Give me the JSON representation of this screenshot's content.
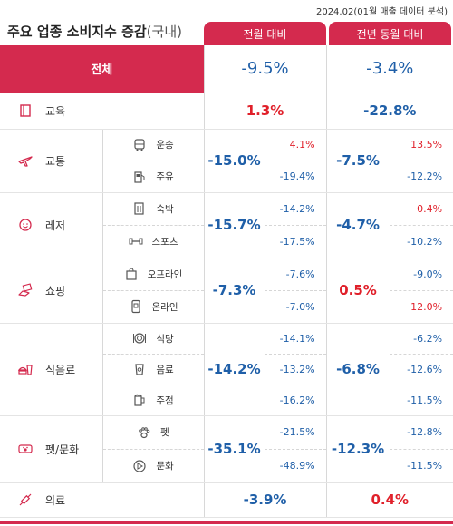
{
  "source_note": "2024.02(01월 매출 데이터 분석)",
  "title_main": "주요 업종 소비지수 증감",
  "title_paren": "(국내)",
  "columns": {
    "month": "전월 대비",
    "year": "전년 동월 대비"
  },
  "total": {
    "label": "전체",
    "month": "-9.5%",
    "year": "-3.4%"
  },
  "education": {
    "label": "교육",
    "month": "1.3%",
    "year": "-22.8%"
  },
  "transport": {
    "label": "교통",
    "month": "-15.0%",
    "year": "-7.5%",
    "subs": [
      {
        "label": "운송",
        "month": "4.1%",
        "year": "13.5%"
      },
      {
        "label": "주유",
        "month": "-19.4%",
        "year": "-12.2%"
      }
    ]
  },
  "leisure": {
    "label": "레저",
    "month": "-15.7%",
    "year": "-4.7%",
    "subs": [
      {
        "label": "숙박",
        "month": "-14.2%",
        "year": "0.4%"
      },
      {
        "label": "스포츠",
        "month": "-17.5%",
        "year": "-10.2%"
      }
    ]
  },
  "shopping": {
    "label": "쇼핑",
    "month": "-7.3%",
    "year": "0.5%",
    "subs": [
      {
        "label": "오프라인",
        "month": "-7.6%",
        "year": "-9.0%"
      },
      {
        "label": "온라인",
        "month": "-7.0%",
        "year": "12.0%"
      }
    ]
  },
  "food": {
    "label": "식음료",
    "month": "-14.2%",
    "year": "-6.8%",
    "subs": [
      {
        "label": "식당",
        "month": "-14.1%",
        "year": "-6.2%"
      },
      {
        "label": "음료",
        "month": "-13.2%",
        "year": "-12.6%"
      },
      {
        "label": "주점",
        "month": "-16.2%",
        "year": "-11.5%"
      }
    ]
  },
  "pet_culture": {
    "label": "펫/문화",
    "month": "-35.1%",
    "year": "-12.3%",
    "subs": [
      {
        "label": "펫",
        "month": "-21.5%",
        "year": "-12.8%"
      },
      {
        "label": "문화",
        "month": "-48.9%",
        "year": "-11.5%"
      }
    ]
  },
  "medical": {
    "label": "의료",
    "month": "-3.9%",
    "year": "0.4%"
  },
  "colors": {
    "accent": "#d42a4e",
    "positive": "#e0202a",
    "negative": "#1f5fa8"
  },
  "icons": {
    "education": "book-icon",
    "transport": "airplane-icon",
    "leisure": "smiley-icon",
    "shopping": "hand-card-icon",
    "food": "burger-drink-icon",
    "pet_culture": "pet-ticket-icon",
    "medical": "syringe-icon"
  }
}
